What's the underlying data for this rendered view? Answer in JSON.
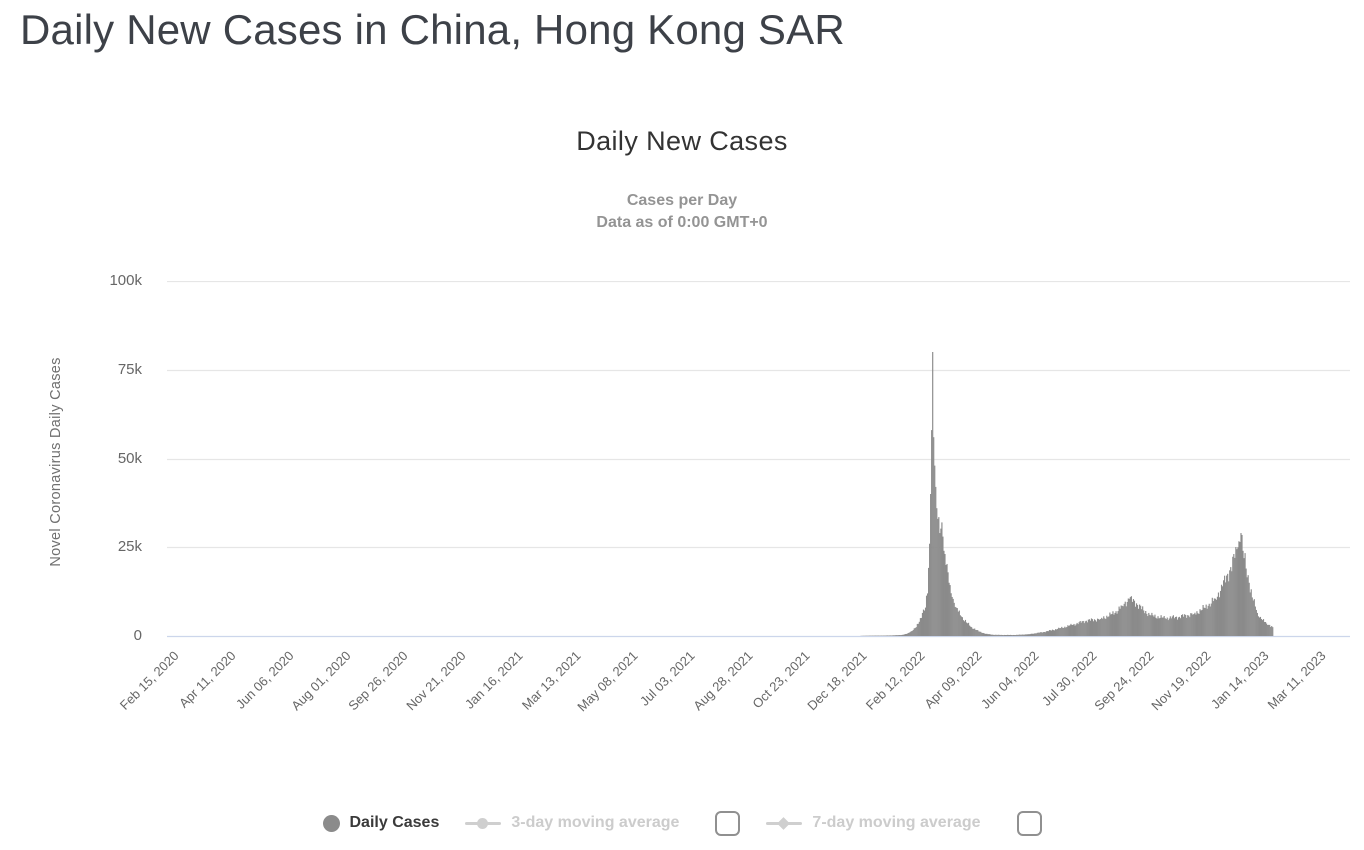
{
  "page": {
    "title": "Daily New Cases in China, Hong Kong SAR"
  },
  "chart": {
    "title": "Daily New Cases",
    "subtitle_line1": "Cases per Day",
    "subtitle_line2": "Data as of 0:00 GMT+0",
    "y_axis_title": "Novel Coronavirus Daily Cases"
  },
  "legend": {
    "items": [
      {
        "label": "Daily Cases",
        "enabled": true,
        "marker": "circle",
        "checkbox": false
      },
      {
        "label": "3-day moving average",
        "enabled": false,
        "marker": "line-circle",
        "checkbox": true,
        "checked": false
      },
      {
        "label": "7-day moving average",
        "enabled": false,
        "marker": "line-diamond",
        "checkbox": true,
        "checked": false
      }
    ]
  },
  "colors": {
    "bar": "#8b8b8b",
    "gridline": "#e6e6e6",
    "axis_line": "#ccd6eb",
    "axis_text": "#666666",
    "title_text": "#333333",
    "subtitle_text": "#949494",
    "page_title_text": "#3d4148",
    "legend_disabled": "#cccccc"
  },
  "chart_data": {
    "type": "bar",
    "title": "Daily New Cases",
    "subtitle": "Cases per Day — Data as of 0:00 GMT+0",
    "xlabel": "",
    "ylabel": "Novel Coronavirus Daily Cases",
    "ylim": [
      0,
      100000
    ],
    "grid": true,
    "legend_position": "bottom",
    "series_name": "Daily Cases",
    "series_color": "#8b8b8b",
    "yticks": [
      {
        "value": 0,
        "label": "0"
      },
      {
        "value": 25000,
        "label": "25k"
      },
      {
        "value": 50000,
        "label": "50k"
      },
      {
        "value": 75000,
        "label": "75k"
      },
      {
        "value": 100000,
        "label": "100k"
      }
    ],
    "xticklabels": [
      "Feb 15, 2020",
      "Apr 11, 2020",
      "Jun 06, 2020",
      "Aug 01, 2020",
      "Sep 26, 2020",
      "Nov 21, 2020",
      "Jan 16, 2021",
      "Mar 13, 2021",
      "May 08, 2021",
      "Jul 03, 2021",
      "Aug 28, 2021",
      "Oct 23, 2021",
      "Dec 18, 2021",
      "Feb 12, 2022",
      "Apr 09, 2022",
      "Jun 04, 2022",
      "Jul 30, 2022",
      "Sep 24, 2022",
      "Nov 19, 2022",
      "Jan 14, 2023",
      "Mar 11, 2023"
    ],
    "x_start_label": "Feb 15, 2020",
    "x_tick_interval_days": 56,
    "axis_total_days": 1155,
    "keypoints_day_value": [
      [
        0,
        0
      ],
      [
        670,
        0
      ],
      [
        686,
        100
      ],
      [
        700,
        120
      ],
      [
        710,
        200
      ],
      [
        717,
        300
      ],
      [
        722,
        600
      ],
      [
        725,
        1100
      ],
      [
        728,
        1700
      ],
      [
        731,
        2500
      ],
      [
        734,
        4000
      ],
      [
        737,
        6500
      ],
      [
        740,
        8000
      ],
      [
        742,
        12000
      ],
      [
        744,
        26000
      ],
      [
        745,
        40000
      ],
      [
        746,
        58000
      ],
      [
        747,
        80000
      ],
      [
        748,
        56000
      ],
      [
        749,
        48000
      ],
      [
        750,
        42000
      ],
      [
        751,
        36000
      ],
      [
        752,
        33000
      ],
      [
        754,
        29000
      ],
      [
        756,
        32000
      ],
      [
        757,
        28000
      ],
      [
        758,
        24000
      ],
      [
        760,
        20000
      ],
      [
        763,
        15000
      ],
      [
        766,
        11000
      ],
      [
        770,
        8000
      ],
      [
        775,
        5500
      ],
      [
        780,
        3800
      ],
      [
        785,
        2500
      ],
      [
        792,
        1300
      ],
      [
        799,
        600
      ],
      [
        806,
        350
      ],
      [
        813,
        300
      ],
      [
        827,
        280
      ],
      [
        841,
        500
      ],
      [
        855,
        1100
      ],
      [
        869,
        2000
      ],
      [
        883,
        3100
      ],
      [
        897,
        4300
      ],
      [
        911,
        4800
      ],
      [
        925,
        6500
      ],
      [
        932,
        8500
      ],
      [
        939,
        10500
      ],
      [
        946,
        9200
      ],
      [
        953,
        7200
      ],
      [
        960,
        5800
      ],
      [
        974,
        5000
      ],
      [
        988,
        5400
      ],
      [
        1002,
        6200
      ],
      [
        1016,
        8500
      ],
      [
        1023,
        10500
      ],
      [
        1030,
        14000
      ],
      [
        1037,
        18500
      ],
      [
        1042,
        22000
      ],
      [
        1045,
        25000
      ],
      [
        1048,
        29000
      ],
      [
        1050,
        24000
      ],
      [
        1053,
        19000
      ],
      [
        1056,
        15000
      ],
      [
        1060,
        10000
      ],
      [
        1064,
        6500
      ],
      [
        1068,
        4800
      ],
      [
        1073,
        3500
      ],
      [
        1078,
        2800
      ],
      [
        1079,
        2500
      ],
      [
        1080,
        0
      ]
    ]
  }
}
